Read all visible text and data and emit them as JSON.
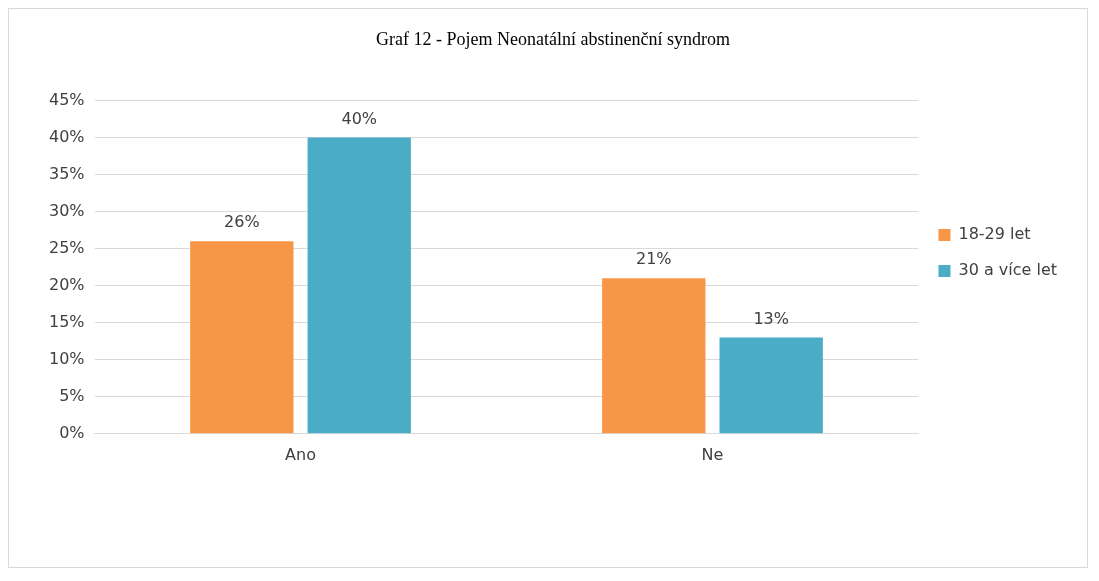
{
  "chart_data": {
    "type": "bar",
    "title": "Graf 12 - Pojem Neonatální abstinenční syndrom",
    "categories": [
      "Ano",
      "Ne"
    ],
    "series": [
      {
        "name": "18-29 let",
        "color": "#f79646",
        "values": [
          26,
          21
        ],
        "value_labels": [
          "26%",
          "21%"
        ]
      },
      {
        "name": "30 a více let",
        "color": "#4bacc6",
        "values": [
          40,
          13
        ],
        "value_labels": [
          "40%",
          "13%"
        ]
      }
    ],
    "ylim": [
      0,
      45
    ],
    "yticks": [
      {
        "value": 0,
        "label": "0%"
      },
      {
        "value": 5,
        "label": "5%"
      },
      {
        "value": 10,
        "label": "10%"
      },
      {
        "value": 15,
        "label": "15%"
      },
      {
        "value": 20,
        "label": "20%"
      },
      {
        "value": 25,
        "label": "25%"
      },
      {
        "value": 30,
        "label": "30%"
      },
      {
        "value": 35,
        "label": "35%"
      },
      {
        "value": 40,
        "label": "40%"
      },
      {
        "value": 45,
        "label": "45%"
      }
    ],
    "grid": "y",
    "legend": "right"
  }
}
